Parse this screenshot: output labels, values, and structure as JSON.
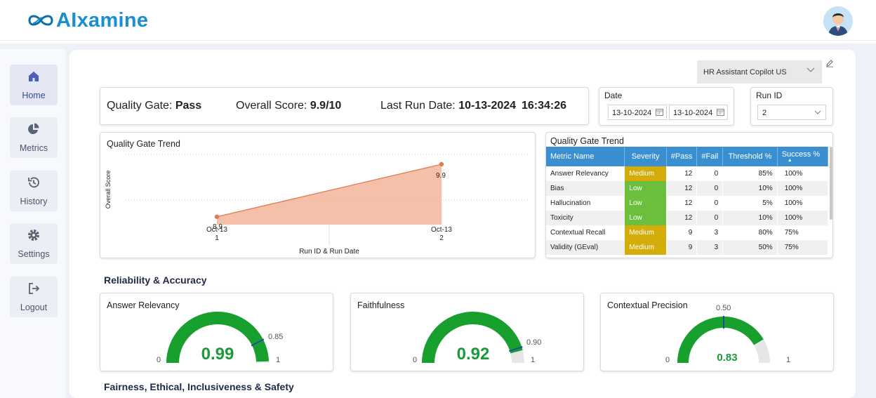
{
  "app": {
    "name": "AIxamine"
  },
  "header": {
    "avatar_icon": "user-avatar"
  },
  "sidebar": {
    "items": [
      {
        "label": "Home",
        "icon": "home-icon",
        "active": true
      },
      {
        "label": "Metrics",
        "icon": "pie-chart-icon",
        "active": false
      },
      {
        "label": "History",
        "icon": "history-icon",
        "active": false
      },
      {
        "label": "Settings",
        "icon": "gear-icon",
        "active": false
      },
      {
        "label": "Logout",
        "icon": "logout-icon",
        "active": false
      }
    ]
  },
  "app_select": {
    "value": "HR Assistant Copilot US"
  },
  "summary": {
    "quality_gate_label": "Quality Gate:",
    "quality_gate_value": "Pass",
    "overall_score_label": "Overall Score:",
    "overall_score_value": "9.9/10",
    "last_run_label": "Last Run Date:",
    "last_run_date": "10-13-2024",
    "last_run_time": "16:34:26"
  },
  "filters": {
    "date_label": "Date",
    "date_from": "13-10-2024",
    "date_to": "13-10-2024",
    "run_id_label": "Run ID",
    "run_id_value": "2"
  },
  "chart_data": {
    "type": "area",
    "title": "Quality Gate Trend",
    "xlabel": "Run ID & Run Date",
    "ylabel": "Overall Score",
    "categories": [
      "Oct-13\n1",
      "Oct-13\n2"
    ],
    "values": [
      8.9,
      9.9
    ],
    "data_labels": [
      "8.9",
      "9.9"
    ],
    "color": "#f4b9a1",
    "line_color": "#e07a52",
    "grid": true
  },
  "metrics_table": {
    "title": "Quality Gate Trend",
    "columns": [
      "Metric Name",
      "Severity",
      "#Pass",
      "#Fail",
      "Threshold %",
      "Success %"
    ],
    "rows": [
      {
        "metric": "Answer Relevancy",
        "severity": "Medium",
        "pass": "12",
        "fail": "0",
        "threshold": "85%",
        "success": "100%"
      },
      {
        "metric": "Bias",
        "severity": "Low",
        "pass": "12",
        "fail": "0",
        "threshold": "10%",
        "success": "100%"
      },
      {
        "metric": "Hallucination",
        "severity": "Low",
        "pass": "12",
        "fail": "0",
        "threshold": "5%",
        "success": "100%"
      },
      {
        "metric": "Toxicity",
        "severity": "Low",
        "pass": "12",
        "fail": "0",
        "threshold": "10%",
        "success": "100%"
      },
      {
        "metric": "Contextual Recall",
        "severity": "Medium",
        "pass": "9",
        "fail": "3",
        "threshold": "80%",
        "success": "75%"
      },
      {
        "metric": "Validity (GEval)",
        "severity": "Medium",
        "pass": "9",
        "fail": "3",
        "threshold": "50%",
        "success": "75%"
      }
    ],
    "severity_colors": {
      "Medium": "#d4ad0a",
      "Low": "#6cbf3c"
    }
  },
  "sections": {
    "reliability": "Reliability & Accuracy",
    "fairness": "Fairness, Ethical, Inclusiveness & Safety"
  },
  "gauges": [
    {
      "title": "Answer Relevancy",
      "value": 0.99,
      "value_label": "0.99",
      "target": 0.85,
      "target_label": "0.85",
      "min_label": "0",
      "max_label": "1"
    },
    {
      "title": "Faithfulness",
      "value": 0.92,
      "value_label": "0.92",
      "target": 0.9,
      "target_label": "0.90",
      "min_label": "0",
      "max_label": "1"
    },
    {
      "title": "Contextual Precision",
      "value": 0.83,
      "value_label": "0.83",
      "target": 0.5,
      "target_label": "0.50",
      "min_label": "0",
      "max_label": "1"
    }
  ],
  "colors": {
    "accent": "#1a8fd0",
    "pass": "#1aa84d",
    "gauge_fill": "#18a02e",
    "gauge_track": "#e6e6e6",
    "target_marker": "#1f4e9c"
  }
}
